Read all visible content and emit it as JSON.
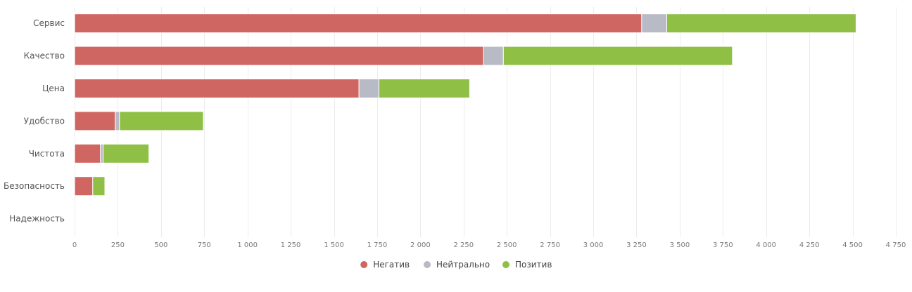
{
  "chart_data": {
    "type": "bar",
    "orientation": "horizontal",
    "stacked": true,
    "categories": [
      "Сервис",
      "Качество",
      "Цена",
      "Удобство",
      "Чистота",
      "Безопасность",
      "Надежность"
    ],
    "series": [
      {
        "name": "Негатив",
        "color": "#d06661",
        "values": [
          3280,
          2365,
          1645,
          235,
          150,
          105,
          0
        ]
      },
      {
        "name": "Нейтрально",
        "color": "#b8bac6",
        "values": [
          145,
          115,
          115,
          25,
          15,
          0,
          0
        ]
      },
      {
        "name": "Позитив",
        "color": "#8fc045",
        "values": [
          1095,
          1325,
          525,
          485,
          265,
          70,
          0
        ]
      }
    ],
    "xlim": [
      0,
      4750
    ],
    "xticks": [
      0,
      250,
      500,
      750,
      1000,
      1250,
      1500,
      1750,
      2000,
      2250,
      2500,
      2750,
      3000,
      3250,
      3500,
      3750,
      4000,
      4250,
      4500,
      4750
    ],
    "xtick_labels": [
      "0",
      "250",
      "500",
      "750",
      "1 000",
      "1 250",
      "1 500",
      "1 750",
      "2 000",
      "2 250",
      "2 500",
      "2 750",
      "3 000",
      "3 250",
      "3 500",
      "3 750",
      "4 000",
      "4 250",
      "4 500",
      "4 750"
    ],
    "grid": true,
    "legend_position": "bottom-center"
  }
}
